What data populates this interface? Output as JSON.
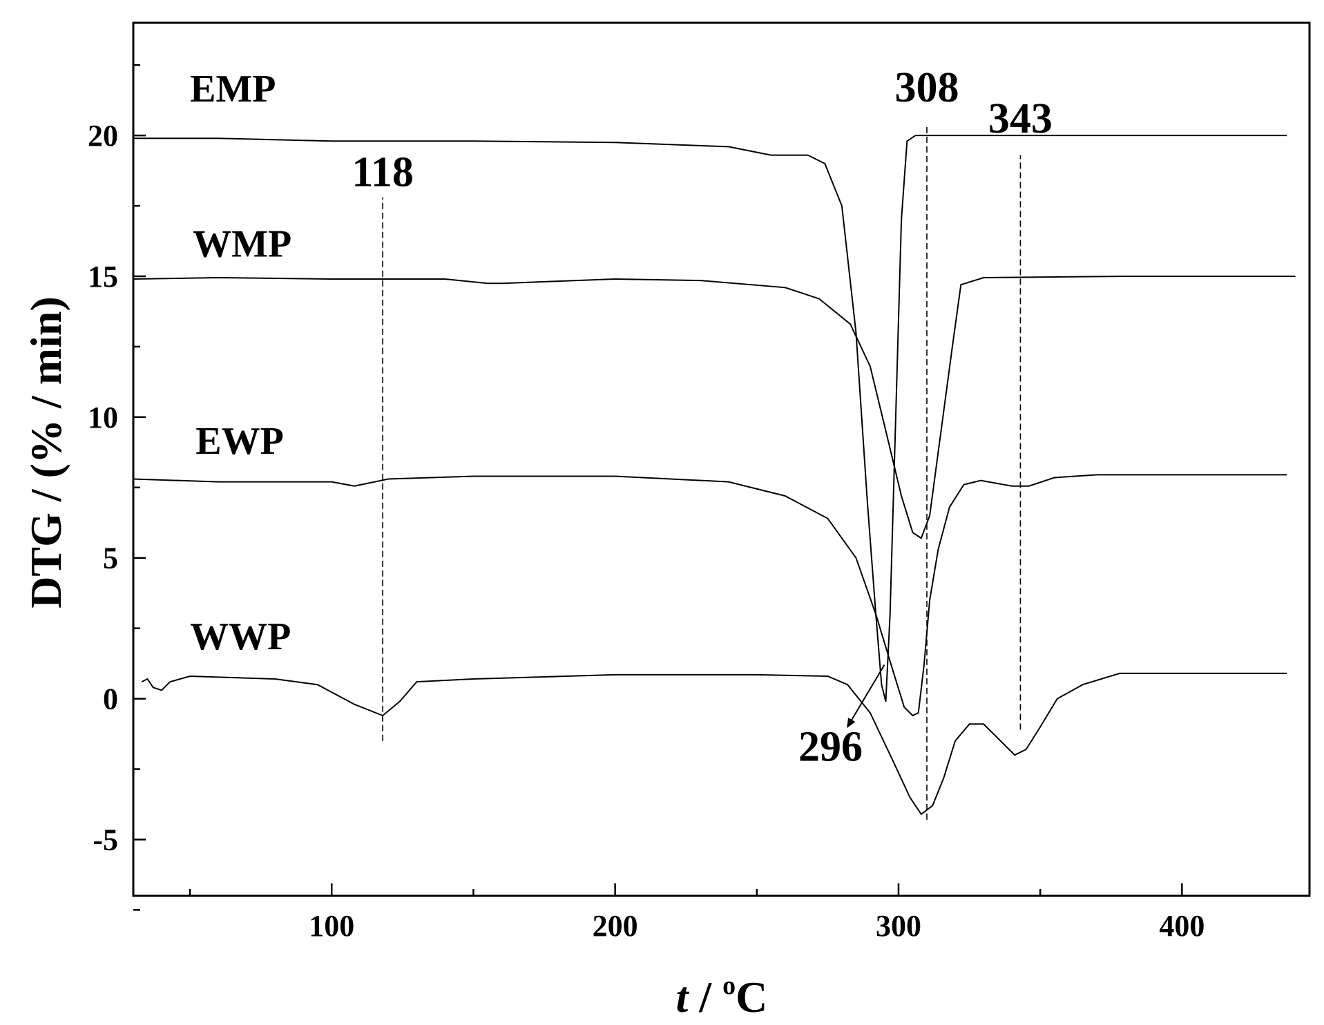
{
  "chart_data": {
    "type": "line",
    "xlabel_italic": "t",
    "xlabel_sep": " / ",
    "xlabel_sup": "o",
    "xlabel_unit": "C",
    "ylabel": "DTG / (% / min)",
    "xlim": [
      30,
      445
    ],
    "ylim": [
      -7,
      24
    ],
    "xticks": [
      100,
      200,
      300,
      400
    ],
    "yticks": [
      -5,
      0,
      5,
      10,
      15,
      20
    ],
    "grid": false,
    "series": [
      {
        "name": "EMP",
        "x": [
          30,
          60,
          100,
          150,
          200,
          240,
          255,
          268,
          274,
          280,
          285,
          289,
          292,
          294,
          295.5,
          297,
          299,
          301,
          303,
          306,
          312,
          350,
          400,
          437
        ],
        "y": [
          19.9,
          19.9,
          19.8,
          19.8,
          19.75,
          19.6,
          19.3,
          19.3,
          19.0,
          17.5,
          13.0,
          7.0,
          3.0,
          0.5,
          -0.1,
          3.0,
          10.0,
          17.0,
          19.8,
          20.0,
          20.0,
          20.0,
          20.0,
          20.0
        ]
      },
      {
        "name": "WMP",
        "x": [
          30,
          60,
          100,
          140,
          155,
          160,
          200,
          230,
          260,
          272,
          283,
          290,
          296,
          301,
          305,
          308,
          311,
          315,
          319,
          322,
          330,
          380,
          440
        ],
        "y": [
          14.9,
          14.95,
          14.9,
          14.9,
          14.75,
          14.75,
          14.9,
          14.85,
          14.6,
          14.2,
          13.3,
          11.8,
          9.3,
          7.2,
          5.9,
          5.7,
          6.5,
          9.5,
          12.5,
          14.7,
          14.95,
          15.0,
          15.0
        ]
      },
      {
        "name": "EWP",
        "x": [
          30,
          60,
          100,
          108,
          120,
          150,
          200,
          240,
          260,
          275,
          285,
          292,
          298,
          302,
          305,
          307,
          309,
          311,
          314,
          318,
          323,
          329,
          340,
          346,
          355,
          370,
          400,
          437
        ],
        "y": [
          7.8,
          7.7,
          7.7,
          7.55,
          7.8,
          7.9,
          7.9,
          7.7,
          7.2,
          6.4,
          5.0,
          3.0,
          1.0,
          -0.3,
          -0.6,
          -0.5,
          1.2,
          3.5,
          5.3,
          6.8,
          7.6,
          7.75,
          7.55,
          7.55,
          7.85,
          7.95,
          7.95,
          7.95
        ]
      },
      {
        "name": "WWP",
        "x": [
          33,
          35,
          37,
          40,
          43,
          50,
          80,
          95,
          108,
          118,
          124,
          130,
          150,
          200,
          250,
          275,
          282,
          290,
          298,
          304,
          308,
          312,
          316,
          320,
          325,
          330,
          336,
          341,
          345,
          350,
          356,
          365,
          378,
          400,
          437
        ],
        "y": [
          0.6,
          0.7,
          0.4,
          0.3,
          0.6,
          0.8,
          0.7,
          0.5,
          -0.2,
          -0.6,
          -0.1,
          0.6,
          0.7,
          0.85,
          0.85,
          0.8,
          0.5,
          -0.5,
          -2.2,
          -3.5,
          -4.1,
          -3.8,
          -2.8,
          -1.5,
          -0.9,
          -0.9,
          -1.5,
          -2.0,
          -1.8,
          -1.0,
          0.0,
          0.5,
          0.9,
          0.9,
          0.9
        ]
      }
    ],
    "series_label_positions": {
      "EMP": [
        50,
        21.2
      ],
      "WMP": [
        51,
        15.7
      ],
      "EWP": [
        52,
        8.7
      ],
      "WWP": [
        50,
        1.75
      ]
    },
    "annotations": [
      {
        "text": "118",
        "x": 118,
        "line_from": -1.5,
        "line_to": 17.8,
        "text_x": 118,
        "text_y": 18.2
      },
      {
        "text": "308",
        "x": 310,
        "line_from": -4.3,
        "line_to": 20.3,
        "text_x": 310,
        "text_y": 21.2
      },
      {
        "text": "343",
        "x": 343,
        "line_from": -1.1,
        "line_to": 19.3,
        "text_x": 343,
        "text_y": 20.1
      },
      {
        "text": "296",
        "arrow_from": [
          295,
          1.2
        ],
        "arrow_to": [
          282,
          -1.0
        ],
        "text_x": 276,
        "text_y": -2.2
      }
    ]
  }
}
